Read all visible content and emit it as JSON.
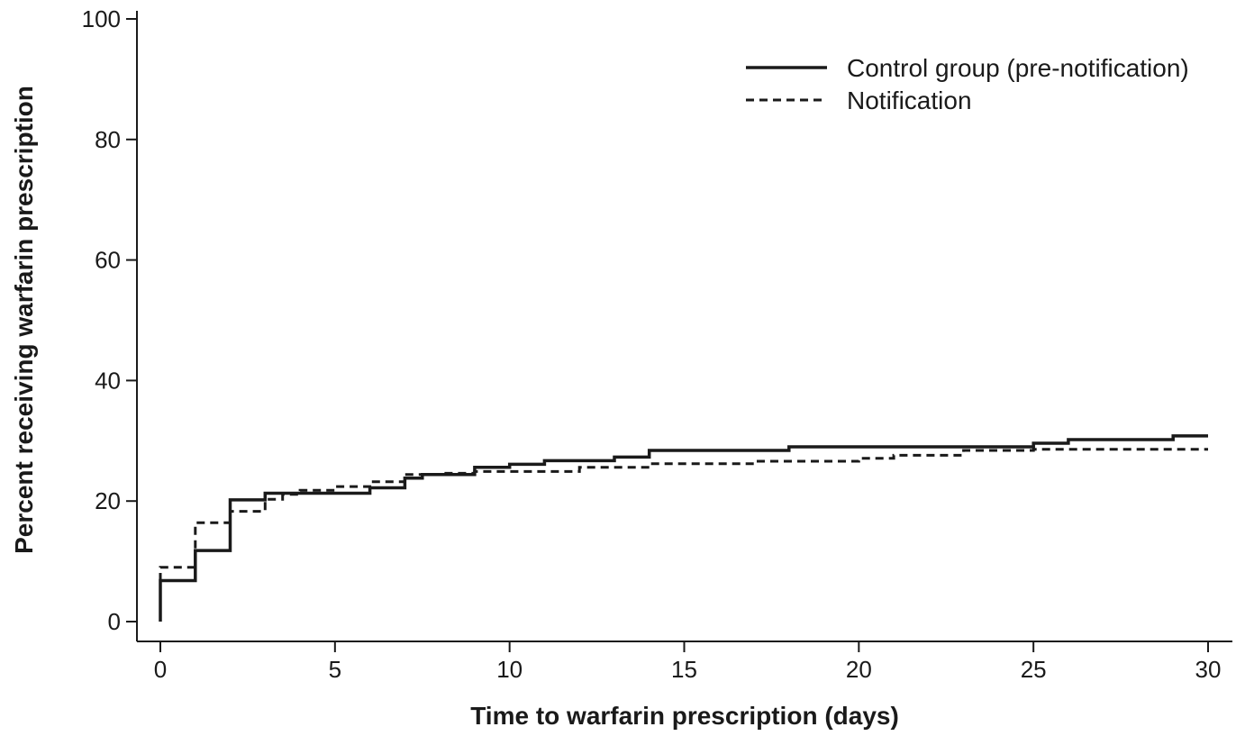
{
  "chart_data": {
    "type": "line",
    "step": true,
    "title": "",
    "xlabel": "Time to warfarin prescription (days)",
    "ylabel": "Percent receiving warfarin prescription",
    "xlim": [
      0,
      30
    ],
    "ylim": [
      0,
      100
    ],
    "xticks": [
      0,
      5,
      10,
      15,
      20,
      25,
      30
    ],
    "yticks": [
      0,
      20,
      40,
      60,
      80,
      100
    ],
    "grid": false,
    "legend_position": "top-right",
    "series": [
      {
        "name": "Control group (pre-notification)",
        "line_style": "solid",
        "color": "#1a1a1a",
        "x": [
          0,
          0,
          1,
          2,
          3,
          6,
          7,
          7.5,
          9,
          10,
          11,
          13,
          14,
          18,
          22,
          25,
          26,
          29,
          30
        ],
        "y": [
          0,
          6.8,
          11.8,
          20.2,
          21.3,
          22.2,
          23.8,
          24.4,
          25.6,
          26.1,
          26.7,
          27.3,
          28.4,
          29.0,
          29.0,
          29.6,
          30.2,
          30.8,
          30.8
        ]
      },
      {
        "name": "Notification",
        "line_style": "dashed",
        "color": "#1a1a1a",
        "x": [
          0,
          0,
          1,
          2,
          3,
          3.5,
          4,
          5,
          6,
          7,
          8,
          9,
          10,
          12,
          14,
          17,
          20,
          21,
          23,
          25,
          30
        ],
        "y": [
          0,
          9.0,
          16.4,
          18.3,
          20.3,
          21.1,
          21.8,
          22.4,
          23.2,
          24.4,
          24.6,
          24.9,
          24.9,
          25.6,
          26.2,
          26.6,
          27.1,
          27.6,
          28.4,
          28.6,
          28.6
        ]
      }
    ]
  }
}
